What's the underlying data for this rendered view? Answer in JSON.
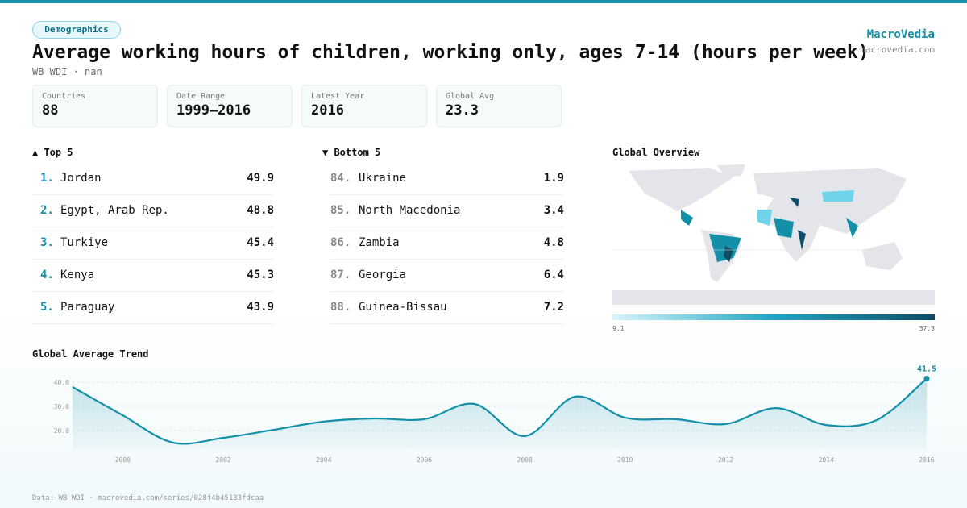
{
  "header": {
    "tag": "Demographics",
    "title": "Average working hours of children, working only, ages 7-14 (hours per week)",
    "subtitle": "WB WDI · nan",
    "brand": "MacroVedia",
    "brand_url": "macrovedia.com"
  },
  "stats": [
    {
      "label": "Countries",
      "value": "88"
    },
    {
      "label": "Date Range",
      "value": "1999–2016"
    },
    {
      "label": "Latest Year",
      "value": "2016"
    },
    {
      "label": "Global Avg",
      "value": "23.3"
    }
  ],
  "top": {
    "title": "▲ Top 5",
    "rows": [
      [
        "1.",
        "Jordan",
        "49.9"
      ],
      [
        "2.",
        "Egypt, Arab Rep.",
        "48.8"
      ],
      [
        "3.",
        "Turkiye",
        "45.4"
      ],
      [
        "4.",
        "Kenya",
        "45.3"
      ],
      [
        "5.",
        "Paraguay",
        "43.9"
      ]
    ]
  },
  "bottom": {
    "title": "▼ Bottom 5",
    "rows": [
      [
        "84.",
        "Ukraine",
        "1.9"
      ],
      [
        "85.",
        "North Macedonia",
        "3.4"
      ],
      [
        "86.",
        "Zambia",
        "4.8"
      ],
      [
        "87.",
        "Georgia",
        "6.4"
      ],
      [
        "88.",
        "Guinea-Bissau",
        "7.2"
      ]
    ]
  },
  "map": {
    "title": "Global Overview",
    "legend_min": "9.1",
    "legend_max": "37.3"
  },
  "chart_data": {
    "type": "line",
    "title": "Global Average Trend",
    "color": "#1390a8",
    "x": [
      1999,
      2000,
      2001,
      2002,
      2003,
      2004,
      2005,
      2006,
      2007,
      2008,
      2009,
      2010,
      2011,
      2012,
      2013,
      2014,
      2015,
      2016
    ],
    "values": [
      38,
      26.3,
      15,
      17,
      20.3,
      23.7,
      25,
      24.7,
      31,
      17.7,
      34,
      25.3,
      24.7,
      22.7,
      29.3,
      22.3,
      24.3,
      41.5
    ],
    "xlim": [
      1999,
      2016
    ],
    "xticks": [
      2000,
      2002,
      2004,
      2006,
      2008,
      2010,
      2012,
      2014,
      2016
    ],
    "ylim": [
      12,
      44
    ],
    "yticks": [
      {
        "value": 20,
        "label": "20.0"
      },
      {
        "value": 30,
        "label": "30.0"
      },
      {
        "value": 40,
        "label": "40.0"
      }
    ],
    "grid": true
  },
  "footer": "Data: WB WDI · macrovedia.com/series/028f4b45133fdcaa"
}
